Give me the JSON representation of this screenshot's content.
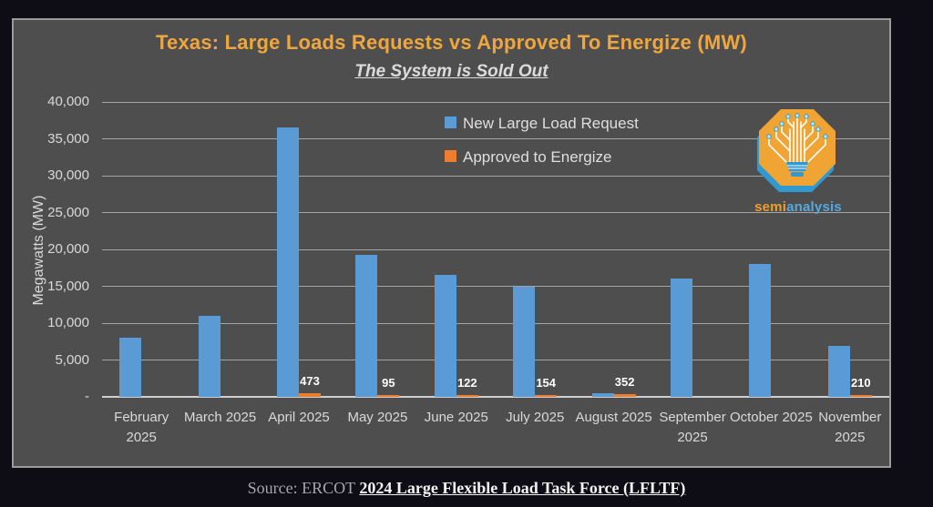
{
  "chart_data": {
    "type": "bar",
    "title": "Texas: Large Loads Requests vs Approved To Energize (MW)",
    "subtitle": "The System is Sold Out",
    "ylabel": "Megawatts (MW)",
    "ylim": [
      0,
      40000
    ],
    "ytick_step": 5000,
    "ytick_labels_bottom_to_top": [
      "-",
      "5,000",
      "10,000",
      "15,000",
      "20,000",
      "25,000",
      "30,000",
      "35,000",
      "40,000"
    ],
    "grid": true,
    "legend_position": "top-right-inside",
    "categories": [
      "February 2025",
      "March 2025",
      "April 2025",
      "May 2025",
      "June 2025",
      "July 2025",
      "August 2025",
      "September 2025",
      "October 2025",
      "November 2025"
    ],
    "series": [
      {
        "name": "New Large Load Request",
        "color": "#5b9bd5",
        "values": [
          8000,
          11000,
          36600,
          19200,
          16500,
          15000,
          500,
          16000,
          18000,
          6900
        ]
      },
      {
        "name": "Approved to Energize",
        "color": "#ed7d31",
        "values": [
          0,
          0,
          473,
          95,
          122,
          154,
          352,
          0,
          0,
          210
        ],
        "data_labels": [
          "",
          "",
          "473",
          "95",
          "122",
          "154",
          "352",
          "",
          "",
          "210"
        ]
      }
    ]
  },
  "logo": {
    "semi": "semi",
    "analysis": "analysis"
  },
  "footer": {
    "source_prefix": "Source: ERCOT ",
    "source_link": "2024 Large Flexible Load Task Force (LFLTF)"
  }
}
